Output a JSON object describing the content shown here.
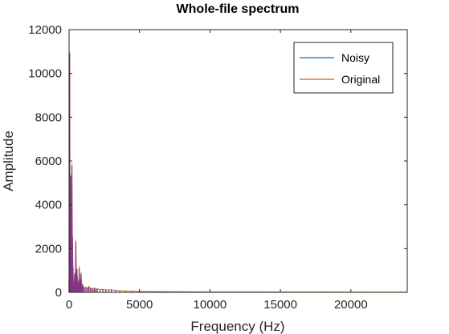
{
  "chart_data": {
    "type": "line",
    "title": "Whole-file spectrum",
    "xlabel": "Frequency (Hz)",
    "ylabel": "Amplitude",
    "xlim": [
      0,
      24000
    ],
    "ylim": [
      0,
      12000
    ],
    "xticks": [
      0,
      5000,
      10000,
      15000,
      20000
    ],
    "yticks": [
      0,
      2000,
      4000,
      6000,
      8000,
      10000,
      12000
    ],
    "legend_position": "top-right",
    "grid": false,
    "series": [
      {
        "name": "Noisy",
        "color": "#0072bd",
        "x": [
          0,
          40,
          80,
          120,
          160,
          200,
          240,
          280,
          320,
          360,
          400,
          440,
          480,
          520,
          560,
          600,
          640,
          680,
          720,
          760,
          800,
          850,
          900,
          950,
          1000,
          1100,
          1200,
          1300,
          1400,
          1500,
          1600,
          1700,
          1800,
          1900,
          2000,
          2200,
          2400,
          2600,
          2800,
          3000,
          3300,
          3600,
          4000,
          4500,
          5000,
          6000,
          7000,
          8000,
          10000,
          12000,
          15000,
          18000,
          21000,
          24000
        ],
        "values": [
          600,
          11000,
          3000,
          5400,
          1500,
          5900,
          2600,
          1200,
          400,
          500,
          900,
          700,
          2400,
          800,
          1100,
          600,
          500,
          300,
          1200,
          400,
          600,
          900,
          350,
          400,
          300,
          220,
          250,
          200,
          300,
          180,
          220,
          160,
          220,
          150,
          180,
          140,
          150,
          130,
          120,
          140,
          100,
          90,
          80,
          70,
          60,
          55,
          50,
          45,
          40,
          40,
          35,
          35,
          30,
          30
        ]
      },
      {
        "name": "Original",
        "color": "#d95319",
        "x": [
          0,
          40,
          80,
          120,
          160,
          200,
          240,
          280,
          320,
          360,
          400,
          440,
          480,
          520,
          560,
          600,
          640,
          680,
          720,
          760,
          800,
          850,
          900,
          950,
          1000,
          1100,
          1200,
          1300,
          1400,
          1500,
          1600,
          1700,
          1800,
          1900,
          2000,
          2200,
          2400,
          2600,
          2800,
          3000,
          3300,
          3600,
          4000,
          4500,
          5000,
          6000,
          7000,
          8000,
          10000,
          12000,
          15000,
          18000,
          21000,
          24000
        ],
        "values": [
          550,
          10900,
          2900,
          5300,
          1400,
          5800,
          2500,
          1100,
          350,
          450,
          850,
          650,
          2300,
          750,
          1050,
          550,
          450,
          250,
          1100,
          350,
          550,
          850,
          300,
          350,
          250,
          200,
          220,
          180,
          260,
          160,
          190,
          140,
          190,
          130,
          160,
          120,
          130,
          110,
          100,
          120,
          80,
          70,
          60,
          50,
          40,
          30,
          25,
          20,
          15,
          12,
          10,
          8,
          6,
          5
        ]
      }
    ],
    "overlay_colors": {
      "yellow": "#edb120",
      "purple": "#7e2f8e"
    }
  }
}
